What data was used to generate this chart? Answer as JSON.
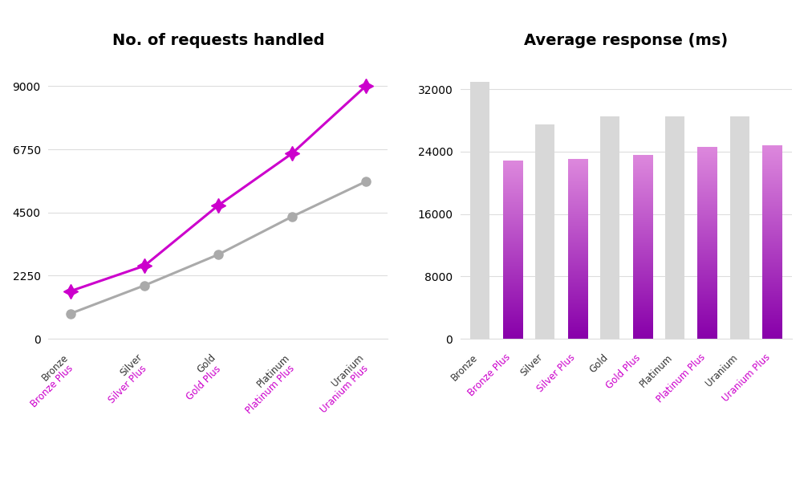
{
  "line_title": "No. of requests handled",
  "bar_title": "Average response (ms)",
  "line_categories": [
    "Bronze",
    "Silver",
    "Gold",
    "Platinum",
    "Uranium"
  ],
  "line_normal": [
    900,
    1900,
    3000,
    4350,
    5600
  ],
  "line_plus": [
    1700,
    2600,
    4750,
    6600,
    9000
  ],
  "line_normal_color": "#aaaaaa",
  "line_plus_color": "#cc00cc",
  "line_ylim": [
    0,
    10000
  ],
  "line_yticks": [
    0,
    2250,
    4500,
    6750,
    9000
  ],
  "bar_categories": [
    "Bronze",
    "Bronze Plus",
    "Silver",
    "Silver Plus",
    "Gold",
    "Gold Plus",
    "Platinum",
    "Platinum Plus",
    "Uranium",
    "Uranium Plus"
  ],
  "bar_normal_values": [
    33000,
    0,
    27500,
    0,
    28500,
    0,
    28500,
    0,
    28500,
    0
  ],
  "bar_plus_values": [
    0,
    22800,
    0,
    23000,
    0,
    23500,
    0,
    24500,
    0,
    24800
  ],
  "bar_normal_color": "#d8d8d8",
  "bar_plus_color_top": "#dd88dd",
  "bar_plus_color_bottom": "#8800aa",
  "bar_ylim": [
    0,
    36000
  ],
  "bar_yticks": [
    0,
    8000,
    16000,
    24000,
    32000
  ],
  "normal_label_color": "#333333",
  "plus_label_color": "#cc00cc",
  "bg_color": "#ffffff",
  "grid_color": "#dddddd",
  "title_fontsize": 14,
  "tick_fontsize": 10,
  "xlabel_fontsize": 8.5
}
